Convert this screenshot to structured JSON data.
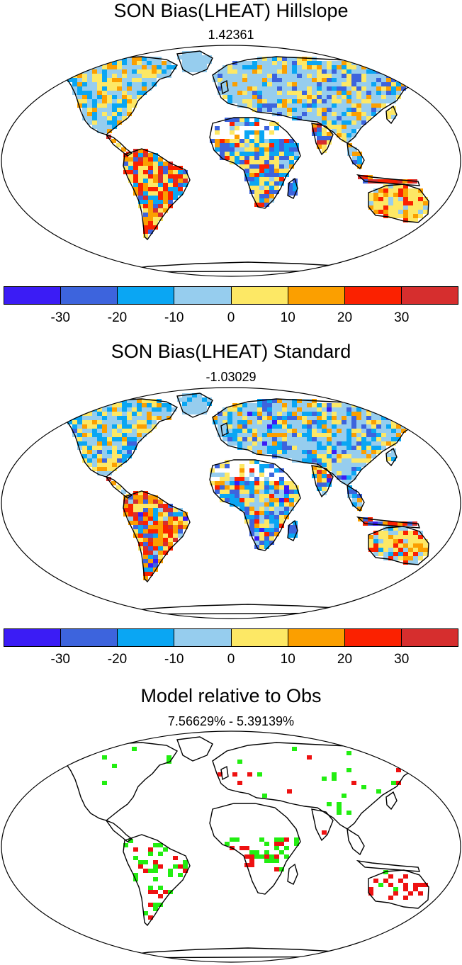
{
  "panels": [
    {
      "title": "SON Bias(LHEAT) Hillslope",
      "subtitle": "1.42361"
    },
    {
      "title": "SON Bias(LHEAT) Standard",
      "subtitle": "-1.03029"
    },
    {
      "title": "Model relative to Obs",
      "subtitle": "7.56629% - 5.39139%"
    }
  ],
  "colorbar": {
    "colors": [
      "#3b1cf5",
      "#3d64dd",
      "#0aa6f3",
      "#96cdee",
      "#fde865",
      "#fb9f00",
      "#fb2100",
      "#d62e2e"
    ],
    "ticks": [
      "-30",
      "-20",
      "-10",
      "0",
      "10",
      "20",
      "30"
    ]
  },
  "panel3_colors": {
    "better": "#22ee11",
    "worse": "#ee1111"
  }
}
